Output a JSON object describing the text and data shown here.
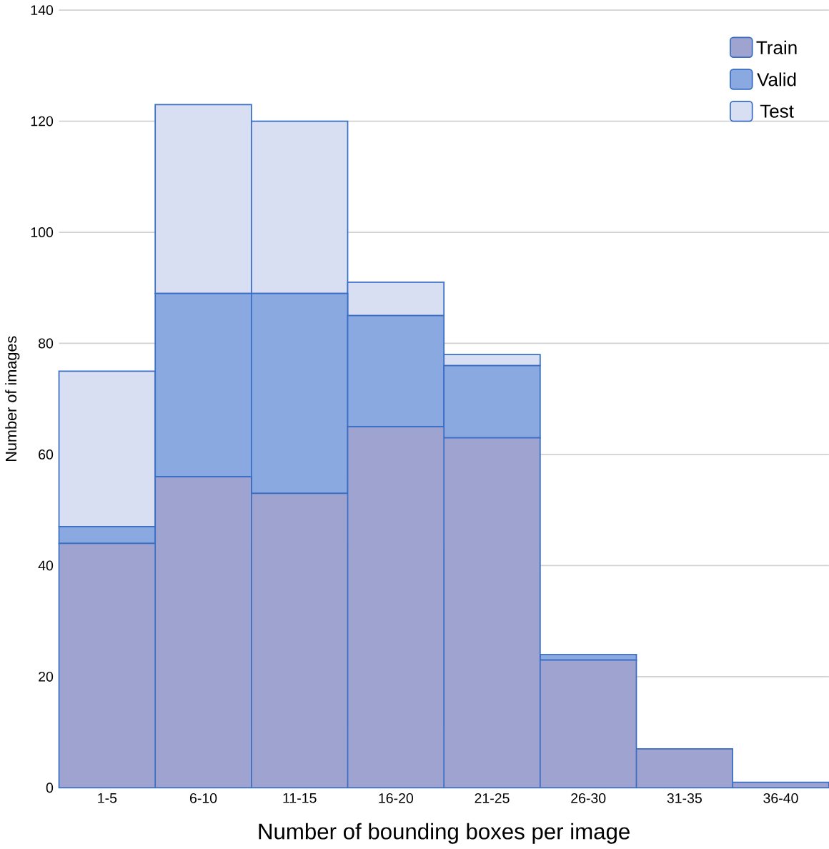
{
  "chart_data": {
    "type": "bar",
    "stacked": true,
    "xlabel": "Number of bounding boxes per image",
    "ylabel": "Number of images",
    "categories": [
      "1-5",
      "6-10",
      "11-15",
      "16-20",
      "21-25",
      "26-30",
      "31-35",
      "36-40"
    ],
    "series": [
      {
        "name": "Train",
        "color": "#9ea3d0",
        "values": [
          44,
          56,
          53,
          65,
          63,
          23,
          7,
          1
        ]
      },
      {
        "name": "Valid",
        "color": "#89a9e0",
        "values": [
          3,
          33,
          36,
          20,
          13,
          1,
          0,
          0
        ]
      },
      {
        "name": "Test",
        "color": "#d9dff2",
        "values": [
          28,
          34,
          31,
          6,
          2,
          0,
          0,
          0
        ]
      }
    ],
    "ylim": [
      0,
      140
    ],
    "yticks": [
      0,
      20,
      40,
      60,
      80,
      100,
      120,
      140
    ],
    "grid": "y",
    "legend": "top right"
  }
}
